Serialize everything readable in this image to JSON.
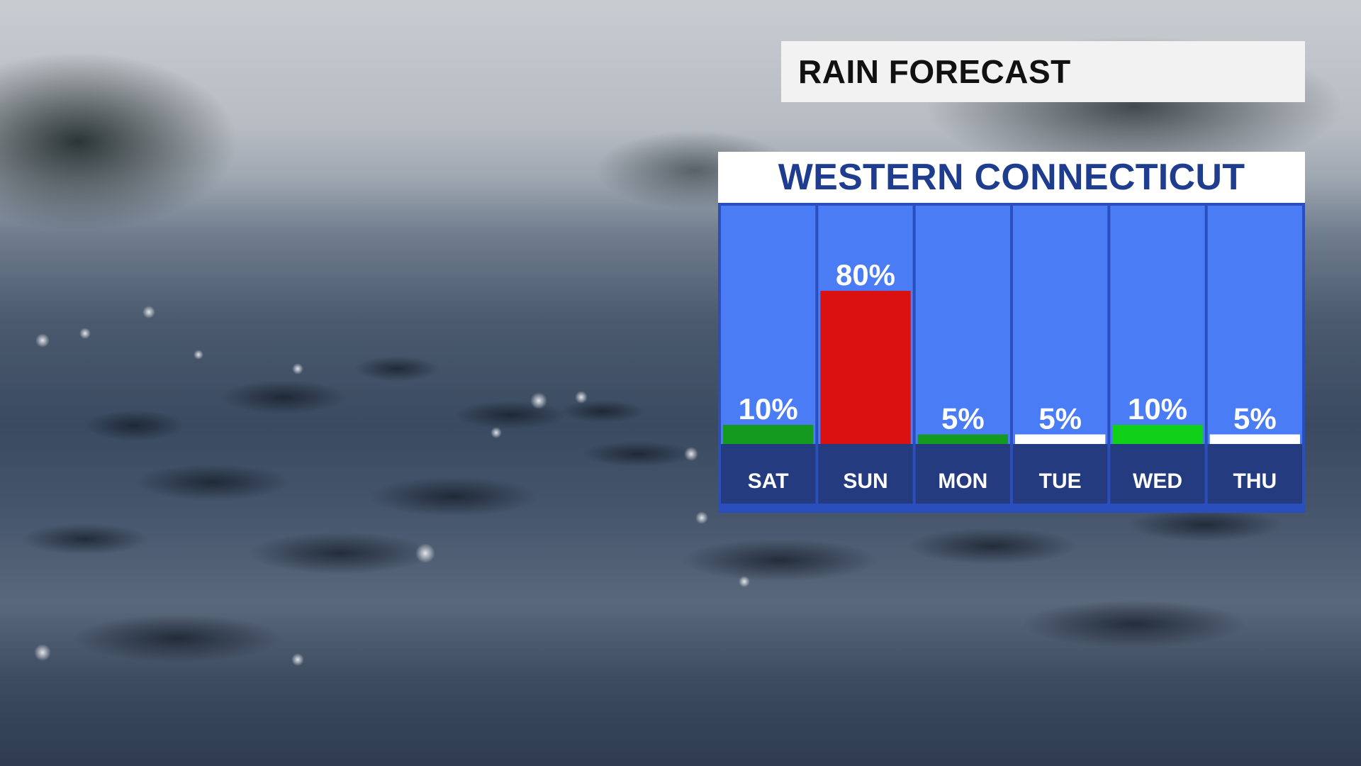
{
  "title": "RAIN FORECAST",
  "region": "WESTERN CONNECTICUT",
  "colors": {
    "column_bg": "#4a7cf6",
    "day_band": "#243b80",
    "panel_border": "#2a4fbd",
    "title_bg": "#f2f2f2",
    "header_text": "#1f3d8f",
    "low": "#139a1f",
    "low_bright": "#10d01a",
    "very_low": "#ffffff",
    "high": "#db1010"
  },
  "chart_data": {
    "type": "bar",
    "categories": [
      "SAT",
      "SUN",
      "MON",
      "TUE",
      "WED",
      "THU"
    ],
    "values": [
      10,
      80,
      5,
      5,
      10,
      5
    ],
    "value_labels": [
      "10%",
      "80%",
      "5%",
      "5%",
      "10%",
      "5%"
    ],
    "bar_colors": [
      "#139a1f",
      "#db1010",
      "#139a1f",
      "#ffffff",
      "#10d01a",
      "#ffffff"
    ],
    "ylim": [
      0,
      100
    ],
    "unit": "%",
    "grid": false,
    "legend": "none"
  }
}
